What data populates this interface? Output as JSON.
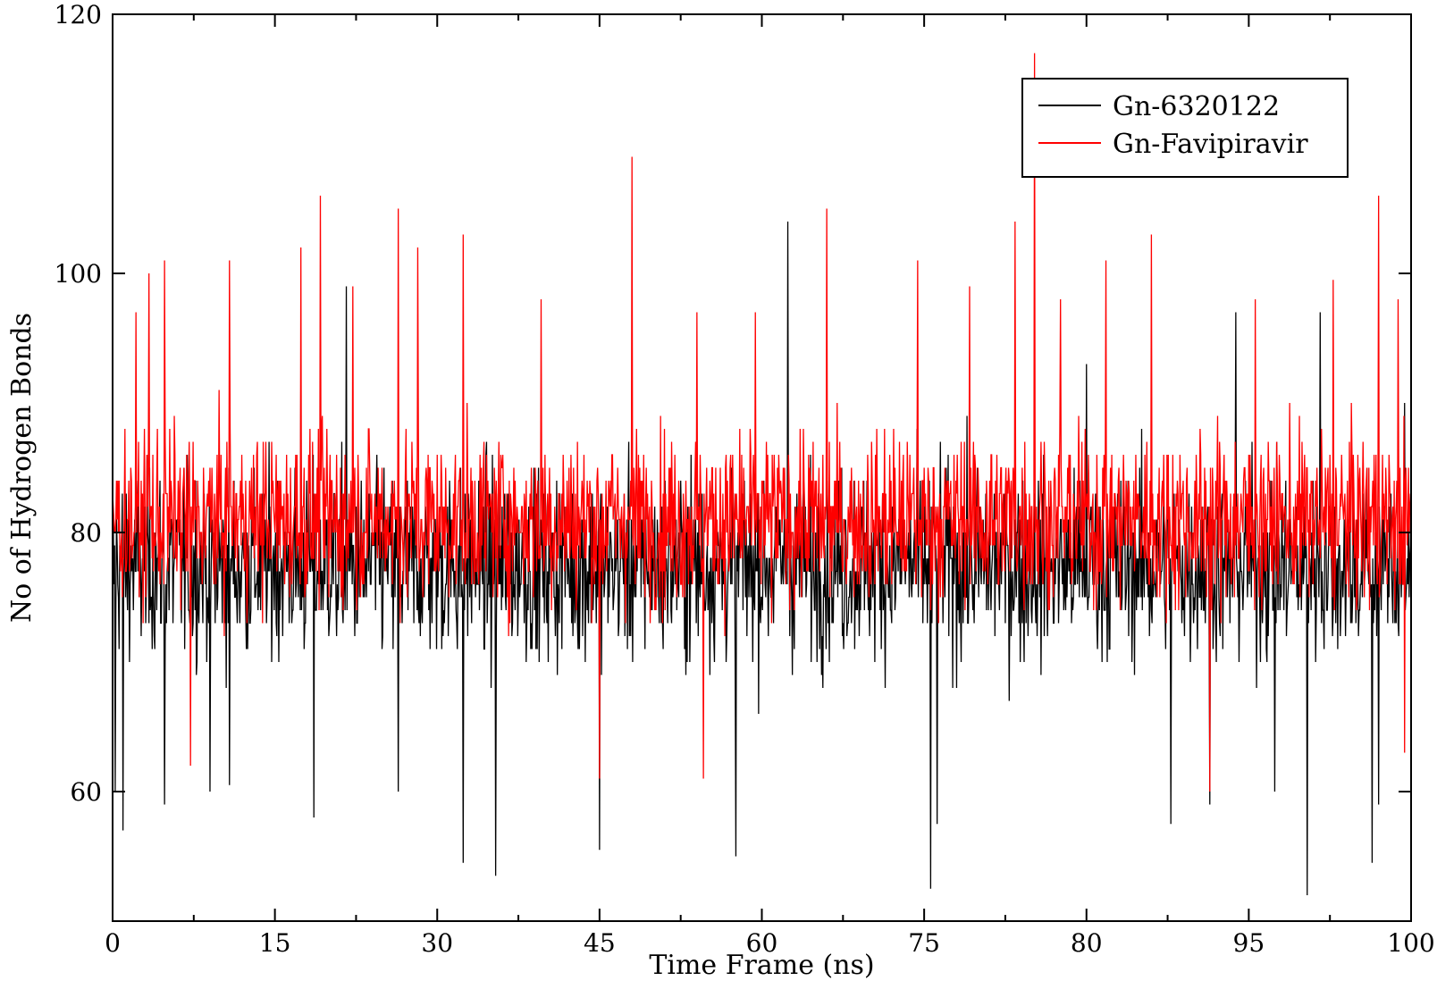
{
  "chart_data": {
    "type": "line",
    "title": "",
    "xlabel": "Time Frame (ns)",
    "ylabel": "No of Hydrogen Bonds",
    "xlim": [
      0,
      100
    ],
    "ylim": [
      50,
      120
    ],
    "x_tick_labels": [
      "0",
      "15",
      "30",
      "45",
      "60",
      "75",
      "80",
      "95",
      "100"
    ],
    "y_ticks": [
      60,
      80,
      100,
      120
    ],
    "grid": false,
    "legend_position": "top-right",
    "sample_step_ns": 0.05,
    "series": [
      {
        "name": "Gn-6320122",
        "color": "#000000",
        "typical_range": [
          67,
          88
        ],
        "mean": 77.5,
        "notable_points": [
          {
            "x": 0.2,
            "y": 60
          },
          {
            "x": 0.8,
            "y": 57
          },
          {
            "x": 4.0,
            "y": 59
          },
          {
            "x": 7.5,
            "y": 60
          },
          {
            "x": 9.0,
            "y": 60.5
          },
          {
            "x": 14.5,
            "y": 92
          },
          {
            "x": 15.5,
            "y": 58
          },
          {
            "x": 18.0,
            "y": 99
          },
          {
            "x": 22.0,
            "y": 60
          },
          {
            "x": 27.0,
            "y": 54.5
          },
          {
            "x": 29.5,
            "y": 53.5
          },
          {
            "x": 37.5,
            "y": 55.5
          },
          {
            "x": 48.0,
            "y": 55.0
          },
          {
            "x": 52.0,
            "y": 104
          },
          {
            "x": 63.0,
            "y": 52.5
          },
          {
            "x": 63.5,
            "y": 57.5
          },
          {
            "x": 75.0,
            "y": 93
          },
          {
            "x": 81.5,
            "y": 57.5
          },
          {
            "x": 84.5,
            "y": 59.0
          },
          {
            "x": 86.5,
            "y": 97
          },
          {
            "x": 89.5,
            "y": 60
          },
          {
            "x": 92.0,
            "y": 52.0
          },
          {
            "x": 93.0,
            "y": 97
          },
          {
            "x": 97.0,
            "y": 54.5
          },
          {
            "x": 97.5,
            "y": 59.0
          },
          {
            "x": 99.5,
            "y": 90
          }
        ]
      },
      {
        "name": "Gn-Favipiravir",
        "color": "#ff0000",
        "typical_range": [
          71,
          90
        ],
        "mean": 81.0,
        "notable_points": [
          {
            "x": 1.8,
            "y": 97
          },
          {
            "x": 2.8,
            "y": 100
          },
          {
            "x": 4.0,
            "y": 101
          },
          {
            "x": 9.0,
            "y": 101
          },
          {
            "x": 14.5,
            "y": 102
          },
          {
            "x": 16.0,
            "y": 106
          },
          {
            "x": 18.5,
            "y": 99
          },
          {
            "x": 22.0,
            "y": 105
          },
          {
            "x": 23.5,
            "y": 102
          },
          {
            "x": 27.0,
            "y": 103
          },
          {
            "x": 33.0,
            "y": 98
          },
          {
            "x": 40.0,
            "y": 109
          },
          {
            "x": 45.0,
            "y": 97
          },
          {
            "x": 49.5,
            "y": 97
          },
          {
            "x": 55.0,
            "y": 105
          },
          {
            "x": 62.0,
            "y": 101
          },
          {
            "x": 66.0,
            "y": 99
          },
          {
            "x": 69.5,
            "y": 104
          },
          {
            "x": 71.0,
            "y": 117
          },
          {
            "x": 73.0,
            "y": 98
          },
          {
            "x": 76.5,
            "y": 101
          },
          {
            "x": 80.0,
            "y": 103
          },
          {
            "x": 88.0,
            "y": 98
          },
          {
            "x": 94.0,
            "y": 99.5
          },
          {
            "x": 97.5,
            "y": 106
          },
          {
            "x": 99.0,
            "y": 98
          },
          {
            "x": 6.0,
            "y": 62
          },
          {
            "x": 37.5,
            "y": 61
          },
          {
            "x": 45.5,
            "y": 61
          },
          {
            "x": 84.5,
            "y": 60
          },
          {
            "x": 99.5,
            "y": 63
          }
        ]
      }
    ]
  }
}
